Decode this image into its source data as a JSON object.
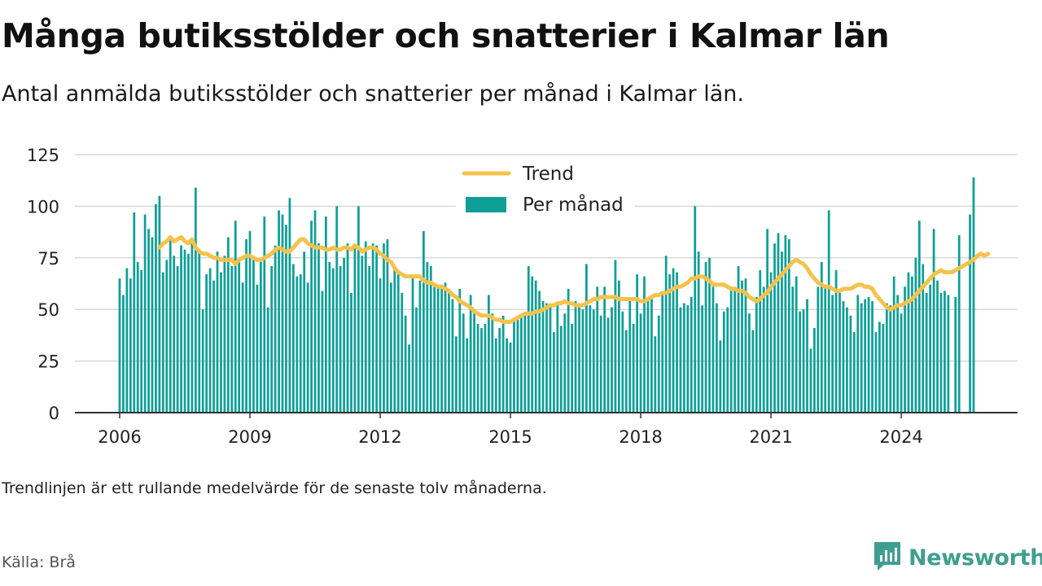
{
  "header": {
    "title": "Många butiksstölder och snatterier i Kalmar län",
    "subtitle": "Antal anmälda butiksstölder och snatterier per månad i Kalmar län."
  },
  "footer": {
    "note": "Trendlinjen är ett rullande medelvärde för de senaste tolv månaderna.",
    "source": "Källa: Brå",
    "brand": "Newsworthy"
  },
  "colors": {
    "bar": "#0e9f97",
    "trend": "#f5c24c",
    "grid": "#d9d9d9",
    "axis": "#333333",
    "brand": "#3f9e8f"
  },
  "icons": {
    "brand_logo": "newsworthy-logo-icon"
  },
  "chart_data": {
    "type": "bar",
    "title": "Många butiksstölder och snatterier i Kalmar län",
    "xlabel": "",
    "ylabel": "",
    "ylim": [
      0,
      125
    ],
    "yticks": [
      0,
      25,
      50,
      75,
      100,
      125
    ],
    "xticks": [
      "2006",
      "2009",
      "2012",
      "2015",
      "2018",
      "2021",
      "2024"
    ],
    "x_start": "2006-01",
    "x_end": "2024-01",
    "grid": true,
    "legend_position": "top-center",
    "legend": [
      {
        "label": "Trend",
        "kind": "line"
      },
      {
        "label": "Per månad",
        "kind": "bar"
      }
    ],
    "series": [
      {
        "name": "Per månad",
        "type": "bar",
        "values": [
          65,
          57,
          70,
          65,
          97,
          73,
          69,
          96,
          89,
          85,
          101,
          105,
          68,
          74,
          84,
          76,
          71,
          81,
          79,
          77,
          82,
          109,
          78,
          50,
          67,
          70,
          64,
          78,
          68,
          76,
          85,
          71,
          93,
          73,
          63,
          84,
          88,
          74,
          62,
          73,
          95,
          51,
          71,
          81,
          98,
          96,
          91,
          104,
          72,
          66,
          67,
          78,
          63,
          93,
          98,
          82,
          59,
          95,
          73,
          70,
          100,
          71,
          75,
          82,
          58,
          80,
          100,
          76,
          83,
          71,
          82,
          81,
          65,
          82,
          84,
          63,
          71,
          67,
          58,
          47,
          33,
          66,
          51,
          64,
          88,
          73,
          71,
          61,
          62,
          62,
          63,
          59,
          55,
          37,
          60,
          48,
          36,
          57,
          50,
          43,
          41,
          43,
          57,
          48,
          36,
          41,
          47,
          36,
          34,
          46,
          45,
          47,
          48,
          71,
          66,
          64,
          59,
          54,
          53,
          53,
          39,
          53,
          42,
          48,
          60,
          43,
          54,
          51,
          50,
          72,
          52,
          50,
          61,
          47,
          61,
          46,
          51,
          74,
          64,
          49,
          40,
          56,
          43,
          67,
          48,
          66,
          55,
          57,
          37,
          47,
          58,
          76,
          67,
          70,
          68,
          51,
          53,
          52,
          56,
          100,
          78,
          52,
          73,
          75,
          61,
          53,
          35,
          49,
          51,
          61,
          61,
          71,
          64,
          65,
          48,
          40,
          56,
          69,
          61,
          89,
          68,
          82,
          87,
          78,
          86,
          84,
          61,
          66,
          49,
          50,
          55,
          31,
          41,
          61,
          73,
          61,
          98,
          57,
          69,
          58,
          54,
          51,
          47,
          39,
          57,
          53,
          55,
          56,
          54,
          39,
          44,
          43,
          53,
          52,
          66,
          57,
          48,
          61,
          68,
          66,
          75,
          93,
          72,
          58,
          62,
          89,
          64,
          58,
          59,
          57,
          0,
          56,
          86,
          0,
          0,
          96,
          114
        ],
        "note": "Monthly counts from 2006-01 to 2024-01 (gaps are months with no reported value)"
      },
      {
        "name": "Trend",
        "type": "line",
        "start_index": 11,
        "values": [
          80,
          82,
          83,
          85,
          83,
          84,
          85,
          83,
          82,
          84,
          80,
          78,
          77,
          77,
          76,
          75,
          75,
          74,
          74,
          74,
          74,
          72,
          74,
          75,
          76,
          76,
          75,
          74,
          74,
          75,
          76,
          77,
          79,
          80,
          79,
          78,
          78,
          80,
          82,
          84,
          84,
          82,
          81,
          80,
          80,
          80,
          79,
          79,
          80,
          79,
          79,
          80,
          80,
          79,
          81,
          80,
          78,
          79,
          80,
          80,
          79,
          77,
          76,
          74,
          73,
          70,
          68,
          67,
          66,
          66,
          66,
          66,
          66,
          64,
          63,
          63,
          62,
          61,
          61,
          60,
          59,
          57,
          56,
          54,
          53,
          52,
          51,
          49,
          48,
          47,
          47,
          47,
          46,
          45,
          45,
          44,
          44,
          44,
          45,
          46,
          47,
          48,
          48,
          48,
          49,
          49,
          50,
          51,
          52,
          52,
          53,
          53,
          54,
          53,
          53,
          52,
          52,
          52,
          53,
          54,
          55,
          55,
          56,
          56,
          56,
          56,
          56,
          55,
          55,
          55,
          55,
          55,
          55,
          54,
          54,
          55,
          56,
          57,
          57,
          58,
          58,
          59,
          60,
          61,
          61,
          62,
          63,
          65,
          65,
          66,
          66,
          65,
          64,
          62,
          62,
          62,
          62,
          61,
          60,
          60,
          59,
          59,
          58,
          56,
          55,
          54,
          55,
          57,
          58,
          61,
          63,
          65,
          67,
          69,
          71,
          73,
          74,
          73,
          72,
          70,
          67,
          65,
          63,
          62,
          61,
          61,
          60,
          59,
          59,
          60,
          60,
          60,
          61,
          62,
          62,
          61,
          61,
          60,
          57,
          55,
          53,
          51,
          50,
          51,
          52,
          52,
          53,
          54,
          55,
          57,
          59,
          61,
          63,
          65,
          67,
          68,
          69,
          68,
          68,
          68,
          69,
          70,
          71,
          72,
          73,
          74,
          76,
          77,
          76,
          77
        ]
      }
    ]
  }
}
